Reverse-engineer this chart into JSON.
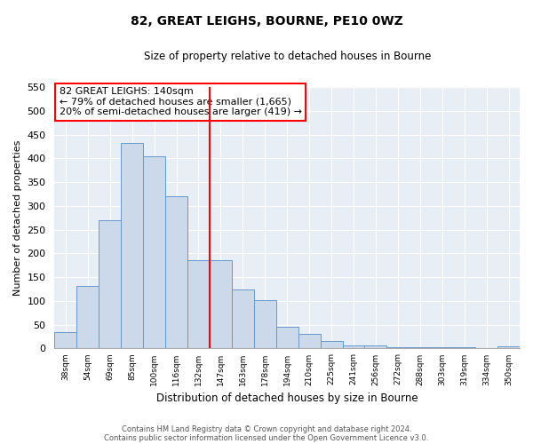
{
  "title": "82, GREAT LEIGHS, BOURNE, PE10 0WZ",
  "subtitle": "Size of property relative to detached houses in Bourne",
  "xlabel": "Distribution of detached houses by size in Bourne",
  "ylabel": "Number of detached properties",
  "bar_labels": [
    "38sqm",
    "54sqm",
    "69sqm",
    "85sqm",
    "100sqm",
    "116sqm",
    "132sqm",
    "147sqm",
    "163sqm",
    "178sqm",
    "194sqm",
    "210sqm",
    "225sqm",
    "241sqm",
    "256sqm",
    "272sqm",
    "288sqm",
    "303sqm",
    "319sqm",
    "334sqm",
    "350sqm"
  ],
  "bar_values": [
    35,
    131,
    270,
    432,
    405,
    320,
    185,
    185,
    125,
    102,
    45,
    30,
    16,
    7,
    7,
    3,
    3,
    2,
    2,
    1,
    5
  ],
  "bar_color": "#ccd9ea",
  "bar_edge_color": "#6699cc",
  "highlight_line_index": 7,
  "ylim": [
    0,
    550
  ],
  "yticks": [
    0,
    50,
    100,
    150,
    200,
    250,
    300,
    350,
    400,
    450,
    500,
    550
  ],
  "annotation_title": "82 GREAT LEIGHS: 140sqm",
  "annotation_line1": "← 79% of detached houses are smaller (1,665)",
  "annotation_line2": "20% of semi-detached houses are larger (419) →",
  "footnote1": "Contains HM Land Registry data © Crown copyright and database right 2024.",
  "footnote2": "Contains public sector information licensed under the Open Government Licence v3.0.",
  "bg_color": "#ffffff",
  "plot_bg_color": "#e8eef5",
  "grid_color": "#ffffff"
}
